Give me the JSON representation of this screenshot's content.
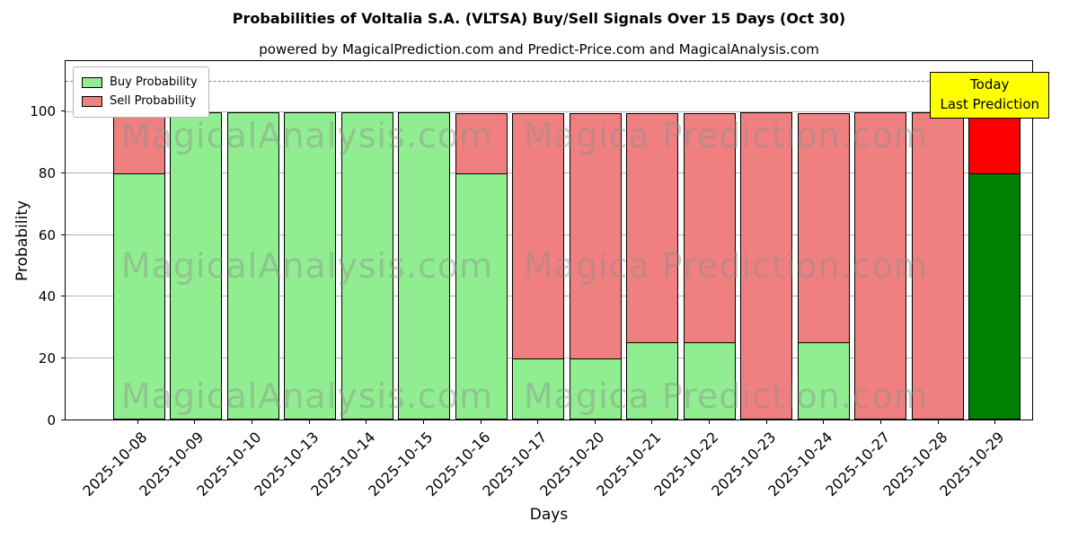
{
  "chart_data": {
    "type": "bar",
    "stacked": true,
    "title": "Probabilities of Voltalia S.A. (VLTSA) Buy/Sell Signals Over 15 Days (Oct 30)",
    "subtitle": "powered by MagicalPrediction.com and Predict-Price.com and MagicalAnalysis.com",
    "xlabel": "Days",
    "ylabel": "Probability",
    "categories": [
      "2025-10-08",
      "2025-10-09",
      "2025-10-10",
      "2025-10-13",
      "2025-10-14",
      "2025-10-15",
      "2025-10-16",
      "2025-10-17",
      "2025-10-20",
      "2025-10-21",
      "2025-10-22",
      "2025-10-23",
      "2025-10-24",
      "2025-10-27",
      "2025-10-28",
      "2025-10-29"
    ],
    "series": [
      {
        "name": "Buy Probability",
        "color": "#90ee90",
        "values": [
          80,
          100,
          100,
          100,
          100,
          100,
          80,
          20,
          20,
          25,
          25,
          0,
          25,
          0,
          0,
          80
        ]
      },
      {
        "name": "Sell Probability",
        "color": "#f08080",
        "values": [
          20,
          0,
          0,
          0,
          0,
          0,
          20,
          80,
          80,
          75,
          75,
          100,
          75,
          100,
          100,
          20
        ]
      }
    ],
    "bar_edge_color": "#000000",
    "today_index": 15,
    "today_colors": {
      "buy": "#008000",
      "sell": "#ff0000"
    },
    "annotation": {
      "line1": "Today",
      "line2": "Last Prediction",
      "bg": "#ffff00"
    },
    "ylim": [
      0,
      116.6
    ],
    "yticks": [
      0,
      20,
      40,
      60,
      80,
      100
    ],
    "dashed_line_y": 110,
    "grid": true,
    "legend_position": "upper left",
    "watermark": {
      "left_text": "MagicalAnalysis.com",
      "right_text": "Magica Prediction.com",
      "rows": 3
    }
  }
}
